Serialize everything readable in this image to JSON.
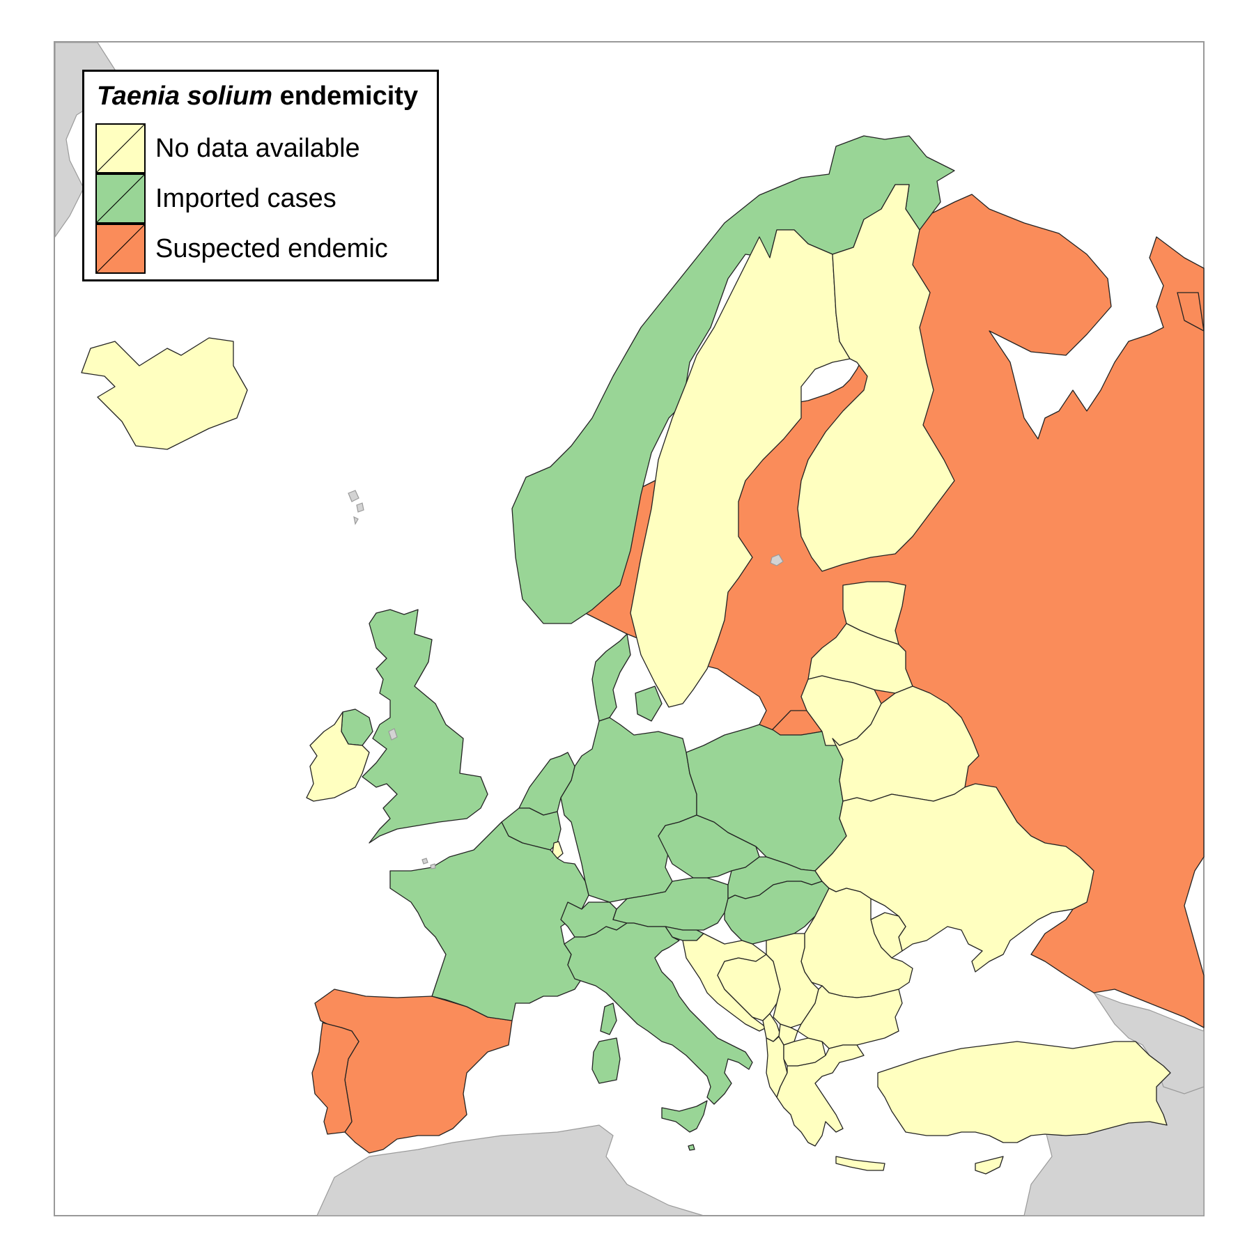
{
  "legend": {
    "title_italic": "Taenia solium",
    "title_rest": "endemicity",
    "items": [
      {
        "label": "No data available",
        "color": "#ffffc0"
      },
      {
        "label": "Imported cases",
        "color": "#99d596"
      },
      {
        "label": "Suspected endemic",
        "color": "#fa8c5a"
      }
    ]
  },
  "colors": {
    "no_data": "#ffffc0",
    "imported": "#99d596",
    "endemic": "#fa8c5a",
    "non_european": "#d3d3d3",
    "sea": "#ffffff",
    "frame": "#999999"
  }
}
